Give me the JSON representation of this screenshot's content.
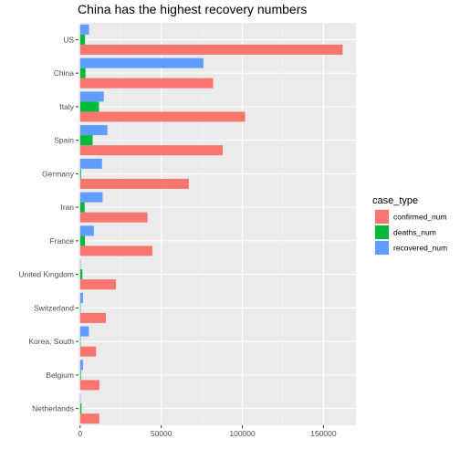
{
  "chart_data": {
    "type": "bar",
    "orientation": "horizontal",
    "title": "China has the highest recovery numbers",
    "xlabel": "",
    "ylabel": "",
    "categories": [
      "US",
      "China",
      "Italy",
      "Spain",
      "Germany",
      "Iran",
      "France",
      "United Kingdom",
      "Switzerland",
      "Korea, South",
      "Belgium",
      "Netherlands"
    ],
    "series": [
      {
        "name": "confirmed_num",
        "color": "#F8766D",
        "values": [
          161800,
          82000,
          101700,
          87900,
          67000,
          41500,
          44500,
          22100,
          15900,
          9800,
          11900,
          11800
        ]
      },
      {
        "name": "deaths_num",
        "color": "#00BA38",
        "values": [
          3000,
          3300,
          11600,
          7700,
          600,
          2800,
          3000,
          1400,
          300,
          160,
          500,
          860
        ]
      },
      {
        "name": "recovered_num",
        "color": "#619CFF",
        "values": [
          5500,
          76000,
          14600,
          16800,
          13500,
          13900,
          8500,
          150,
          1800,
          5400,
          1800,
          250
        ]
      }
    ],
    "xlim": [
      -1000,
      170000
    ],
    "xticks": [
      0,
      50000,
      100000,
      150000
    ],
    "xtick_labels": [
      "0",
      "50000",
      "100000",
      "150000"
    ],
    "legend": {
      "title": "case_type",
      "position": "right",
      "labels": [
        "confirmed_num",
        "deaths_num",
        "recovered_num"
      ]
    }
  }
}
